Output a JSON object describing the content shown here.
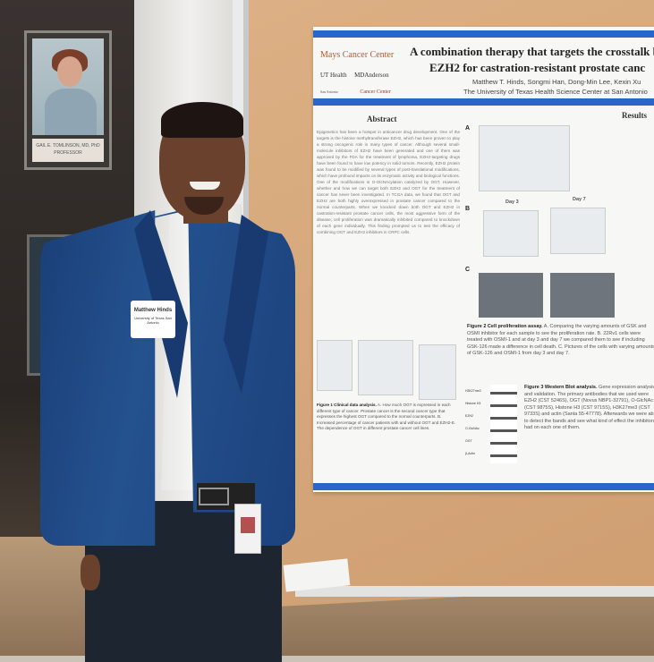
{
  "scene": "Researcher standing beside a scientific poster",
  "portrait": {
    "name": "GAIL E. TOMLINSON, MD, PhD",
    "role": "PROFESSOR"
  },
  "poster": {
    "title_line1": "A combination therapy that targets the crosstalk betw",
    "title_line2": "EZH2 for castration-resistant prostate canc",
    "authors": "Matthew T. Hinds, Songmi Han, Dong-Min Lee, Kexin Xu",
    "affiliation": "The University of Texas Health Science Center at San Antonio",
    "logo_main": "Mays Cancer Center",
    "logo_ut": "UT Health",
    "logo_ut_sub": "San Antonio",
    "logo_md": "MDAnderson",
    "logo_md_sub": "Cancer Center",
    "abstract_heading": "Abstract",
    "results_heading": "Results",
    "abstract_text": "Epigenetics has been a hotspot in anticancer drug development. One of the targets is the histone methyltransferase EZH2, which has been proven to play a strong oncogenic role in many types of cancer. Although several small-molecule inhibitors of EZH2 have been generated and one of them was approved by the FDA for the treatment of lymphoma, EZH2-targeting drugs have been found to have low potency in solid tumors. Recently, EZH2 protein was found to be modified by several types of post-translational modifications, which have profound impacts on its enzymatic activity and biological functions. One of the modifications is O-GlcNAcylation catalyzed by OGT. However, whether and how we can target both EZH2 and OGT for the treatment of cancer has never been investigated. In TCGA data, we found that OGT and EZH2 are both highly overexpressed in prostate cancer compared to the normal counterparts. When we knocked down both OGT and EZH2 in castration-resistant prostate cancer cells, the most aggressive form of the disease, cell proliferation was dramatically inhibited compared to knockdown of each gene individually. This finding prompted us to test the efficacy of combining OGT and EZH2 inhibitors in CRPC cells.",
    "figure_labels": [
      "A",
      "B",
      "C"
    ],
    "fig2_day_labels": [
      "Day 3",
      "Day 7"
    ],
    "fig1_caption_title": "Figure 1 Clinical data analysis.",
    "fig1_caption": "A. How much OGT is expressed in each different type of cancer. Prostate cancer is the second cancer type that expresses the highest OGT compared to the normal counterparts. B. Increased percentage of cancer patients with and without OGT and EZH2-E. The dependence of OGT in different prostate cancer cell lines.",
    "fig2_caption_title": "Figure 2 Cell proliferation assay.",
    "fig2_caption": "A. Comparing the varying amounts of GSK and OSMI inhibitor for each sample to see the proliferation rate. B. 22Rv1 cells were treated with OSMI-1 and at day 3 and day 7 we compared them to see if including GSK-126 made a difference in cell death. C. Pictures of the cells with varying amounts of GSK-126 and OSMI-1 from day 3 and day 7.",
    "fig3_caption_title": "Figure 3 Western Blot analysis.",
    "fig3_caption": "Gene expression analysis and validation. The primary antibodies that we used were EZH2 (CST 5246S), OGT (Novus NBP1-32791), O-GlcNAc (CST 9875S), Histone H3 (CST 9715S), H3K27me3 (CST 9733S) and actin (Santa 55-47778). Afterwards we were able to detect the bands and see what kind of effect the inhibitors had on each one of them.",
    "blot_labels": [
      "H3K27me3",
      "Histone H3",
      "EZH2",
      "O-GlcNAc",
      "OGT",
      "β-Actin"
    ]
  },
  "name_badge": {
    "name": "Matthew Hinds",
    "org": "University of Texas San Antonio"
  },
  "colors": {
    "poster_banner": "#2a65c9",
    "jacket": "#24528f",
    "corkboard": "#d6a77a",
    "logo_orange": "#c8561d"
  }
}
